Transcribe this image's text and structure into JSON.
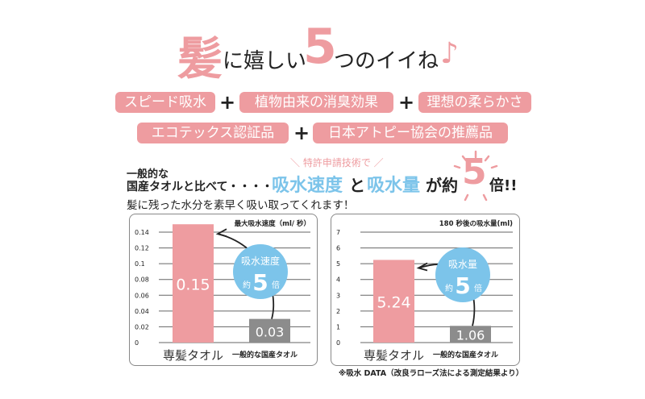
{
  "headline": {
    "kami": "髪",
    "part1": "に嬉しい",
    "five": "5",
    "part2": "つのイイね",
    "note": "♪"
  },
  "features": [
    "スピード吸水",
    "植物由来の消臭効果",
    "理想の柔らかさ",
    "エコテックス認証品",
    "日本アトピー協会の推薦品"
  ],
  "plus": "+",
  "intro": {
    "line1": "一般的な",
    "line2_prefix": "国産タオルと比べて・・・・",
    "patent": "特許申請技術で",
    "speed": "吸水速度",
    "to": "と",
    "amount": "吸水量",
    "ga_yaku": "が約",
    "five": "5",
    "bai": "倍!!",
    "line3": "髪に残った水分を素早く吸い取ってくれます！"
  },
  "colors": {
    "pink": "#ee9ca0",
    "blue": "#7cc4ea",
    "gray": "#8c8c8c"
  },
  "chart_data": [
    {
      "type": "bar",
      "title": "最大吸水速度（ml/ 秒）",
      "categories": [
        "専髪タオル",
        "一般的な国産タオル"
      ],
      "values": [
        0.15,
        0.03
      ],
      "value_labels": [
        "0.15",
        "0.03"
      ],
      "yticks": [
        "0",
        "0.02",
        "0.04",
        "0.06",
        "0.08",
        "0.1",
        "0.12",
        "0.14"
      ],
      "ylim": [
        0,
        0.14
      ],
      "grid": true,
      "badge": {
        "line1": "吸水速度",
        "yaku": "約",
        "num": "5",
        "bai": "倍"
      }
    },
    {
      "type": "bar",
      "title": "180 秒後の吸水量(ml)",
      "categories": [
        "専髪タオル",
        "一般的な国産タオル"
      ],
      "values": [
        5.24,
        1.06
      ],
      "value_labels": [
        "5.24",
        "1.06"
      ],
      "yticks": [
        "0",
        "1",
        "2",
        "3",
        "4",
        "5",
        "6",
        "7"
      ],
      "ylim": [
        0,
        7
      ],
      "grid": true,
      "badge": {
        "line1": "吸水量",
        "yaku": "約",
        "num": "5",
        "bai": "倍"
      }
    }
  ],
  "footnote": "※吸水 DATA（改良ラローズ法による測定結果より）"
}
